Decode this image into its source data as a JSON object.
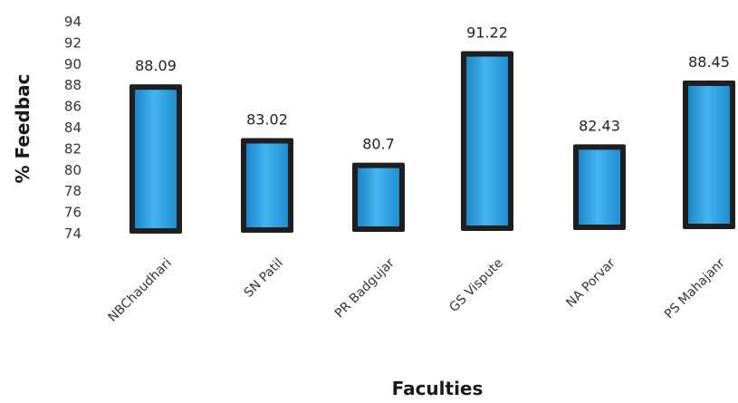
{
  "chart_data": {
    "type": "bar",
    "title": "",
    "xlabel": "Faculties",
    "ylabel": "% Feedbac",
    "ylim": [
      74,
      94
    ],
    "yticks": [
      74,
      76,
      78,
      80,
      82,
      84,
      86,
      88,
      90,
      92,
      94
    ],
    "grid": false,
    "categories": [
      "NBChaudhari",
      "SN Patil",
      "PR Badgujar",
      "GS Vispute",
      "NA Porvar",
      "PS Mahajanr"
    ],
    "values": [
      88.09,
      83.02,
      80.7,
      91.22,
      82.43,
      88.45
    ],
    "data_labels": [
      "88.09",
      "83.02",
      "80.7",
      "91.22",
      "82.43",
      "88.45"
    ],
    "colors": {
      "bar_fill": "#2fa3e6",
      "bar_border": "#1f1f1f"
    }
  }
}
